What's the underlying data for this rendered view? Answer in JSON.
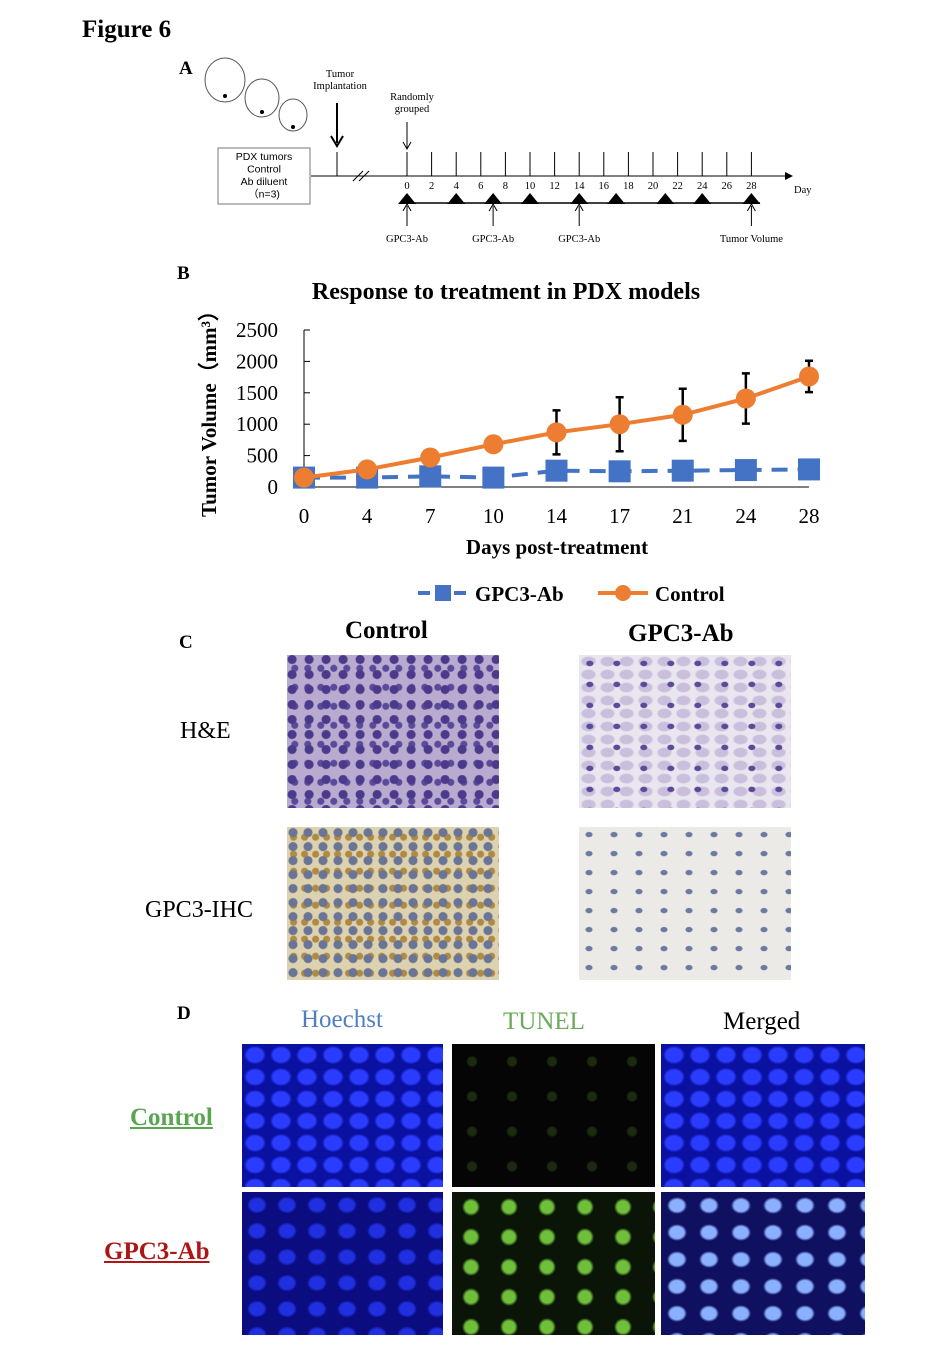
{
  "figure_title": "Figure 6",
  "panels": {
    "a": "A",
    "b": "B",
    "c": "C",
    "d": "D"
  },
  "timeline": {
    "box_lines": [
      "PDX tumors",
      "Control",
      "Ab diluent",
      "（n=3)"
    ],
    "implantation": "Tumor Implantation",
    "implantation_lines": [
      "Tumor",
      "Implantation"
    ],
    "grouped_lines": [
      "Randomly",
      "grouped"
    ],
    "day_ticks": [
      0,
      2,
      4,
      6,
      8,
      10,
      12,
      14,
      16,
      18,
      20,
      22,
      24,
      26,
      28
    ],
    "day_label": "Day",
    "measurement_days": [
      0,
      4,
      7,
      10,
      14,
      17,
      21,
      24,
      28
    ],
    "events": [
      {
        "day": 0,
        "label": "GPC3-Ab"
      },
      {
        "day": 7,
        "label": "GPC3-Ab"
      },
      {
        "day": 14,
        "label": "GPC3-Ab"
      },
      {
        "day": 28,
        "label": "Tumor Volume"
      }
    ]
  },
  "chart_data": {
    "type": "line",
    "title": "Response to treatment in PDX models",
    "xlabel": "Days post-treatment",
    "ylabel": "Tumor Volume（mm³）",
    "categories": [
      "0",
      "4",
      "7",
      "10",
      "14",
      "17",
      "21",
      "24",
      "28"
    ],
    "ylim": [
      0,
      2500
    ],
    "yticks": [
      0,
      500,
      1000,
      1500,
      2000,
      2500
    ],
    "grid": false,
    "legend_placement": "bottom",
    "series": [
      {
        "name": "GPC3-Ab",
        "color": "#4472c4",
        "marker": "square",
        "dash": true,
        "values": [
          150,
          150,
          170,
          150,
          260,
          250,
          260,
          270,
          280
        ]
      },
      {
        "name": "Control",
        "color": "#ed7d31",
        "marker": "circle",
        "dash": false,
        "values": [
          150,
          280,
          470,
          680,
          870,
          1000,
          1150,
          1410,
          1760
        ],
        "error": [
          0,
          0,
          0,
          0,
          350,
          430,
          415,
          400,
          250
        ]
      }
    ]
  },
  "histology": {
    "col_headers": [
      "Control",
      "GPC3-Ab"
    ],
    "row_labels": [
      "H&E",
      "GPC3-IHC"
    ]
  },
  "fluorescence": {
    "col_headers": [
      "Hoechst",
      "TUNEL",
      "Merged"
    ],
    "col_colors": [
      "#4f7fc0",
      "#6aaa5a",
      "#000000"
    ],
    "row_labels": [
      "Control",
      "GPC3-Ab"
    ],
    "row_colors": [
      "#5aa550",
      "#b01515"
    ]
  }
}
